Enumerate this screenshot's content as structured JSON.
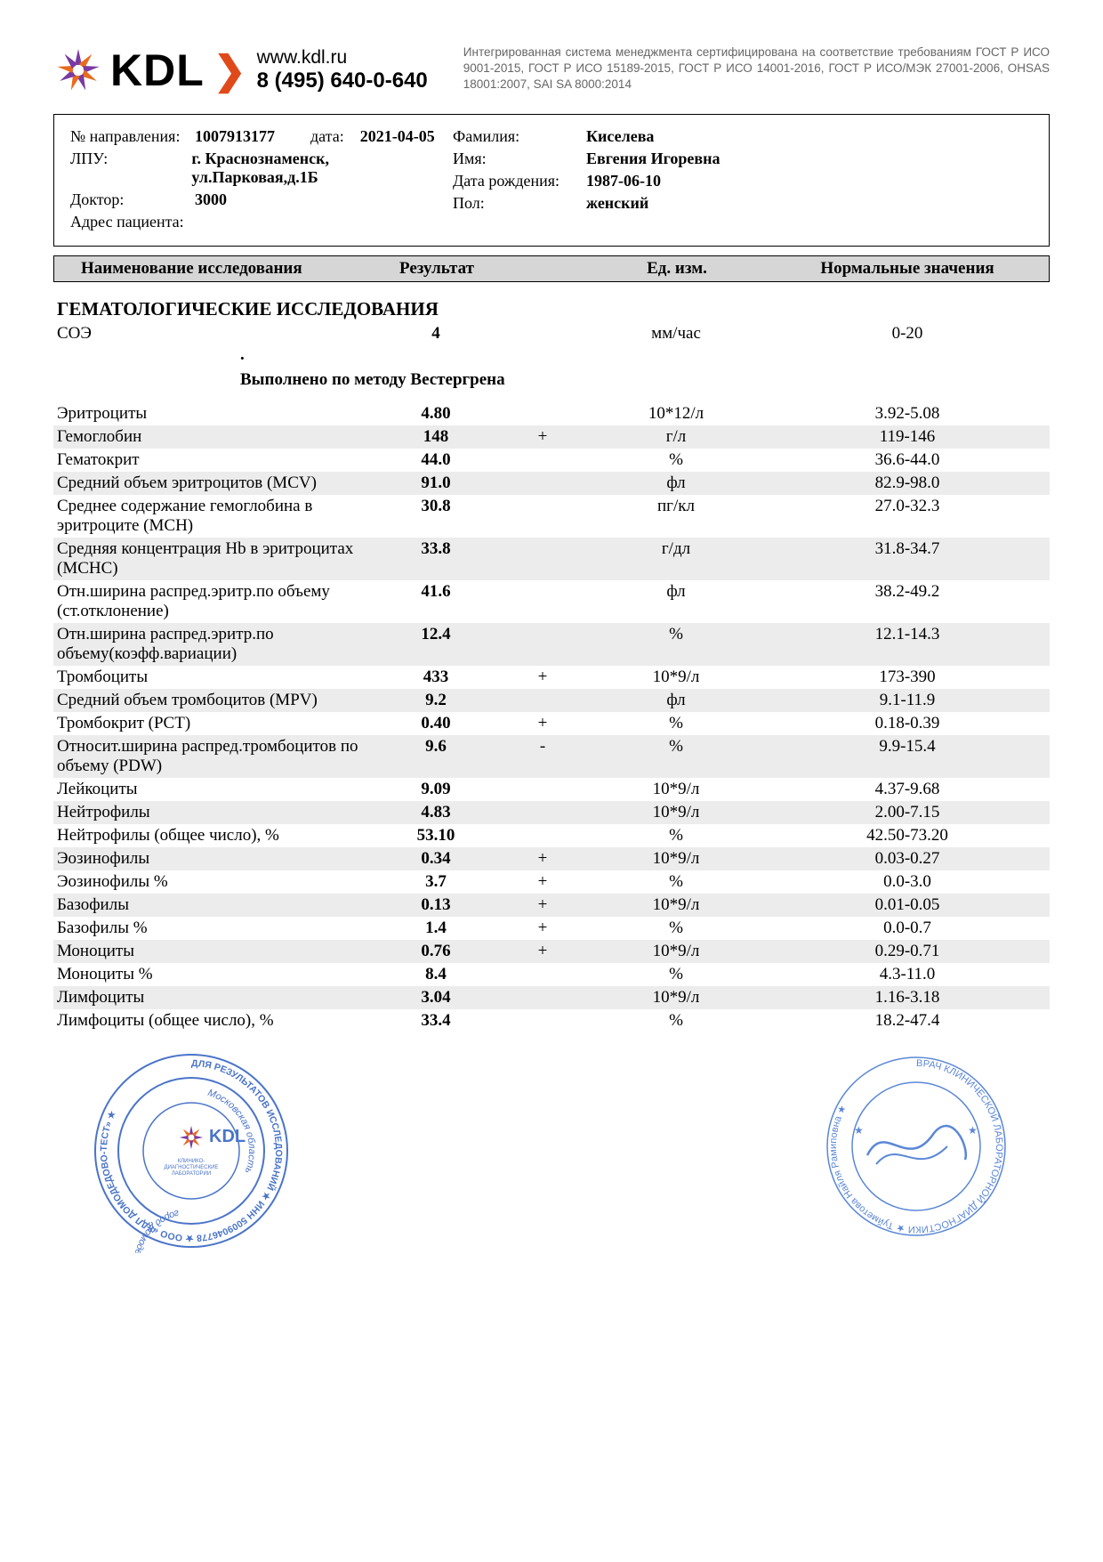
{
  "header": {
    "logo_text": "KDL",
    "site": "www.kdl.ru",
    "phone": "8 (495) 640-0-640",
    "cert": "Интегрированная система менеджмента сертифицирована на соответствие требованиям ГОСТ Р ИСО 9001-2015, ГОСТ Р ИСО 15189-2015, ГОСТ Р ИСО 14001-2016, ГОСТ Р ИСО/МЭК 27001-2006, OHSAS 18001:2007, SAI SA 8000:2014"
  },
  "patient": {
    "labels": {
      "ref_no": "№ направления:",
      "date": "дата:",
      "lpu": "ЛПУ:",
      "doctor": "Доктор:",
      "address": "Адрес пациента:",
      "surname": "Фамилия:",
      "name": "Имя:",
      "dob": "Дата рождения:",
      "sex": "Пол:"
    },
    "ref_no": "1007913177",
    "date": "2021-04-05",
    "lpu": "г. Краснознаменск, ул.Парковая,д.1Б",
    "doctor": "3000",
    "address": "",
    "surname": "Киселева",
    "name": "Евгения Игоревна",
    "dob": "1987-06-10",
    "sex": "женский"
  },
  "table_head": {
    "name": "Наименование исследования",
    "result": "Результат",
    "unit": "Ед. изм.",
    "ref": "Нормальные значения"
  },
  "section_title": "ГЕМАТОЛОГИЧЕСКИЕ ИССЛЕДОВАНИЯ",
  "note": "Выполнено по методу Вестергрена",
  "rows": [
    {
      "name": "СОЭ",
      "res": "4",
      "flag": "",
      "unit": "мм/час",
      "ref": "0-20",
      "alt": false
    },
    {
      "name": "Эритроциты",
      "res": "4.80",
      "flag": "",
      "unit": "10*12/л",
      "ref": "3.92-5.08",
      "alt": false
    },
    {
      "name": "Гемоглобин",
      "res": "148",
      "flag": "+",
      "unit": "г/л",
      "ref": "119-146",
      "alt": true
    },
    {
      "name": "Гематокрит",
      "res": "44.0",
      "flag": "",
      "unit": "%",
      "ref": "36.6-44.0",
      "alt": false
    },
    {
      "name": "Средний объем эритроцитов (MCV)",
      "res": "91.0",
      "flag": "",
      "unit": "фл",
      "ref": "82.9-98.0",
      "alt": true
    },
    {
      "name": "Среднее содержание гемоглобина в эритроците (MCH)",
      "res": "30.8",
      "flag": "",
      "unit": "пг/кл",
      "ref": "27.0-32.3",
      "alt": false
    },
    {
      "name": "Средняя концентрация Hb в эритроцитах (MCHC)",
      "res": "33.8",
      "flag": "",
      "unit": "г/дл",
      "ref": "31.8-34.7",
      "alt": true
    },
    {
      "name": "Отн.ширина распред.эритр.по объему (ст.отклонение)",
      "res": "41.6",
      "flag": "",
      "unit": "фл",
      "ref": "38.2-49.2",
      "alt": false
    },
    {
      "name": "Отн.ширина распред.эритр.по объему(коэфф.вариации)",
      "res": "12.4",
      "flag": "",
      "unit": "%",
      "ref": "12.1-14.3",
      "alt": true
    },
    {
      "name": "Тромбоциты",
      "res": "433",
      "flag": "+",
      "unit": "10*9/л",
      "ref": "173-390",
      "alt": false
    },
    {
      "name": "Средний объем тромбоцитов (MPV)",
      "res": "9.2",
      "flag": "",
      "unit": "фл",
      "ref": "9.1-11.9",
      "alt": true
    },
    {
      "name": "Тромбокрит (PCT)",
      "res": "0.40",
      "flag": "+",
      "unit": "%",
      "ref": "0.18-0.39",
      "alt": false
    },
    {
      "name": "Относит.ширина распред.тромбоцитов по объему (PDW)",
      "res": "9.6",
      "flag": "-",
      "unit": "%",
      "ref": "9.9-15.4",
      "alt": true
    },
    {
      "name": "Лейкоциты",
      "res": "9.09",
      "flag": "",
      "unit": "10*9/л",
      "ref": "4.37-9.68",
      "alt": false
    },
    {
      "name": "Нейтрофилы",
      "res": "4.83",
      "flag": "",
      "unit": "10*9/л",
      "ref": "2.00-7.15",
      "alt": true
    },
    {
      "name": "Нейтрофилы (общее число), %",
      "res": "53.10",
      "flag": "",
      "unit": "%",
      "ref": "42.50-73.20",
      "alt": false
    },
    {
      "name": "Эозинофилы",
      "res": "0.34",
      "flag": "+",
      "unit": "10*9/л",
      "ref": "0.03-0.27",
      "alt": true
    },
    {
      "name": "Эозинофилы %",
      "res": "3.7",
      "flag": "+",
      "unit": "%",
      "ref": "0.0-3.0",
      "alt": false
    },
    {
      "name": "Базофилы",
      "res": "0.13",
      "flag": "+",
      "unit": "10*9/л",
      "ref": "0.01-0.05",
      "alt": true
    },
    {
      "name": "Базофилы %",
      "res": "1.4",
      "flag": "+",
      "unit": "%",
      "ref": "0.0-0.7",
      "alt": false
    },
    {
      "name": "Моноциты",
      "res": "0.76",
      "flag": "+",
      "unit": "10*9/л",
      "ref": "0.29-0.71",
      "alt": true
    },
    {
      "name": "Моноциты %",
      "res": "8.4",
      "flag": "",
      "unit": "%",
      "ref": "4.3-11.0",
      "alt": false
    },
    {
      "name": "Лимфоциты",
      "res": "3.04",
      "flag": "",
      "unit": "10*9/л",
      "ref": "1.16-3.18",
      "alt": true
    },
    {
      "name": "Лимфоциты (общее число), %",
      "res": "33.4",
      "flag": "",
      "unit": "%",
      "ref": "18.2-47.4",
      "alt": false
    }
  ],
  "colors": {
    "accent": "#e04a1a",
    "logo_purple": "#7a3aa0",
    "logo_orange": "#e86b1f",
    "header_gray": "#d6d6d6",
    "row_alt": "#ececec",
    "stamp_blue": "#4a74c9",
    "cert_text": "#666666"
  },
  "stamps": {
    "left_outer": "ДЛЯ РЕЗУЛЬТАТОВ ИССЛЕДОВАНИЙ ★ ИНН 5009046778 ★ ООО «КДЛ ДОМОДЕДОВО-ТЕСТ» ★",
    "left_inner_top": "Московская область",
    "left_inner_bottom": "город Домодедово",
    "left_center_sub": "КЛИНИКО-\nДИАГНОСТИЧЕСКИЕ\nЛАБОРАТОРИИ",
    "right_outer": "ВРАЧ КЛИНИЧЕСКОЙ ЛАБОРАТОРНОЙ ДИАГНОСТИКИ ★ Туйметова Найля Рамиповна ★"
  }
}
